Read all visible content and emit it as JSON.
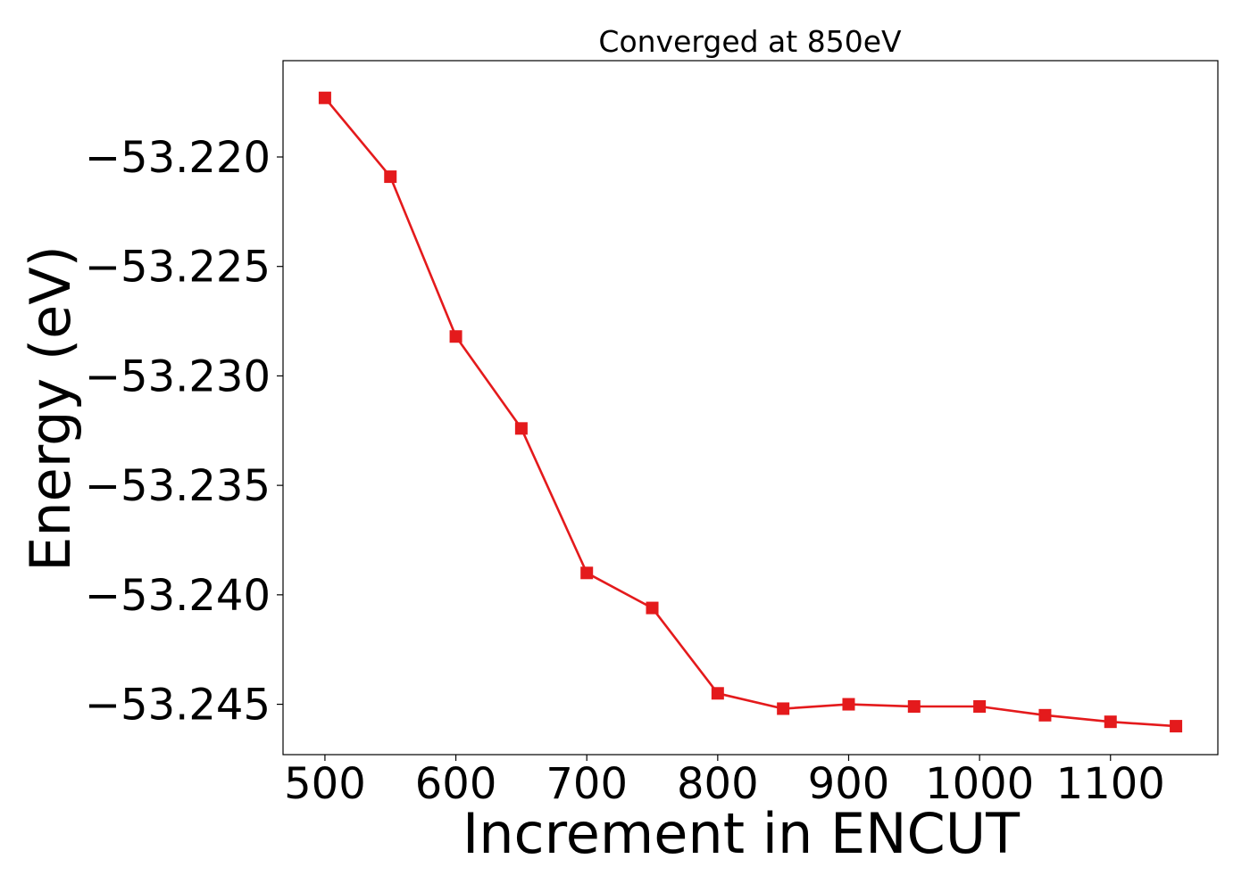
{
  "chart_data": {
    "type": "line",
    "title": "Converged at 850eV",
    "xlabel": "Increment in ENCUT",
    "ylabel": "Energy (eV)",
    "xlim": [
      468,
      1182
    ],
    "ylim": [
      -53.2473,
      -53.2156
    ],
    "xticks": [
      500,
      600,
      700,
      800,
      900,
      1000,
      1100
    ],
    "xtick_labels": [
      "500",
      "600",
      "700",
      "800",
      "900",
      "1000",
      "1100"
    ],
    "yticks": [
      -53.22,
      -53.225,
      -53.23,
      -53.235,
      -53.24,
      -53.245
    ],
    "ytick_labels": [
      "−53.220",
      "−53.225",
      "−53.230",
      "−53.235",
      "−53.240",
      "−53.245"
    ],
    "grid": false,
    "legend": false,
    "series": [
      {
        "color": "#e41a1c",
        "marker": "square",
        "x": [
          500,
          550,
          600,
          650,
          700,
          750,
          800,
          850,
          900,
          950,
          1000,
          1050,
          1100,
          1150
        ],
        "y": [
          -53.2173,
          -53.2209,
          -53.2282,
          -53.2324,
          -53.239,
          -53.2406,
          -53.2445,
          -53.2452,
          -53.245,
          -53.2451,
          -53.2451,
          -53.2455,
          -53.2458,
          -53.246
        ]
      }
    ]
  }
}
